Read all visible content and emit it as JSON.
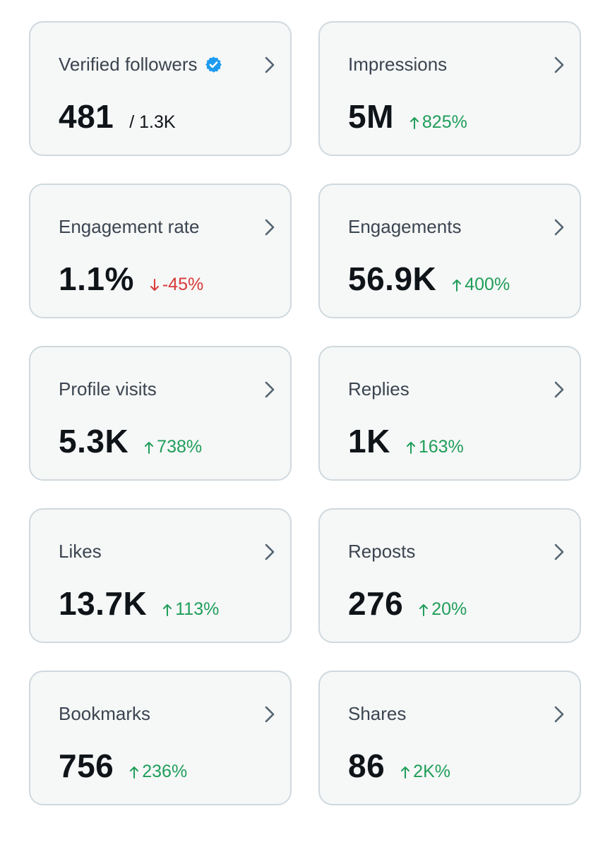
{
  "cards": [
    {
      "title": "Verified followers",
      "value": "481",
      "total": "/ 1.3K",
      "verified": true
    },
    {
      "title": "Impressions",
      "value": "5M",
      "change": "825%",
      "direction": "up"
    },
    {
      "title": "Engagement rate",
      "value": "1.1%",
      "change": "-45%",
      "direction": "down"
    },
    {
      "title": "Engagements",
      "value": "56.9K",
      "change": "400%",
      "direction": "up"
    },
    {
      "title": "Profile visits",
      "value": "5.3K",
      "change": "738%",
      "direction": "up"
    },
    {
      "title": "Replies",
      "value": "1K",
      "change": "163%",
      "direction": "up"
    },
    {
      "title": "Likes",
      "value": "13.7K",
      "change": "113%",
      "direction": "up"
    },
    {
      "title": "Reposts",
      "value": "276",
      "change": "20%",
      "direction": "up"
    },
    {
      "title": "Bookmarks",
      "value": "756",
      "change": "236%",
      "direction": "up"
    },
    {
      "title": "Shares",
      "value": "86",
      "change": "2K%",
      "direction": "up"
    }
  ],
  "colors": {
    "up": "#1f9e5a",
    "down": "#d83a3a",
    "verified_badge": "#1d9bf0",
    "card_border": "#cfd9de",
    "chevron": "#536471"
  }
}
